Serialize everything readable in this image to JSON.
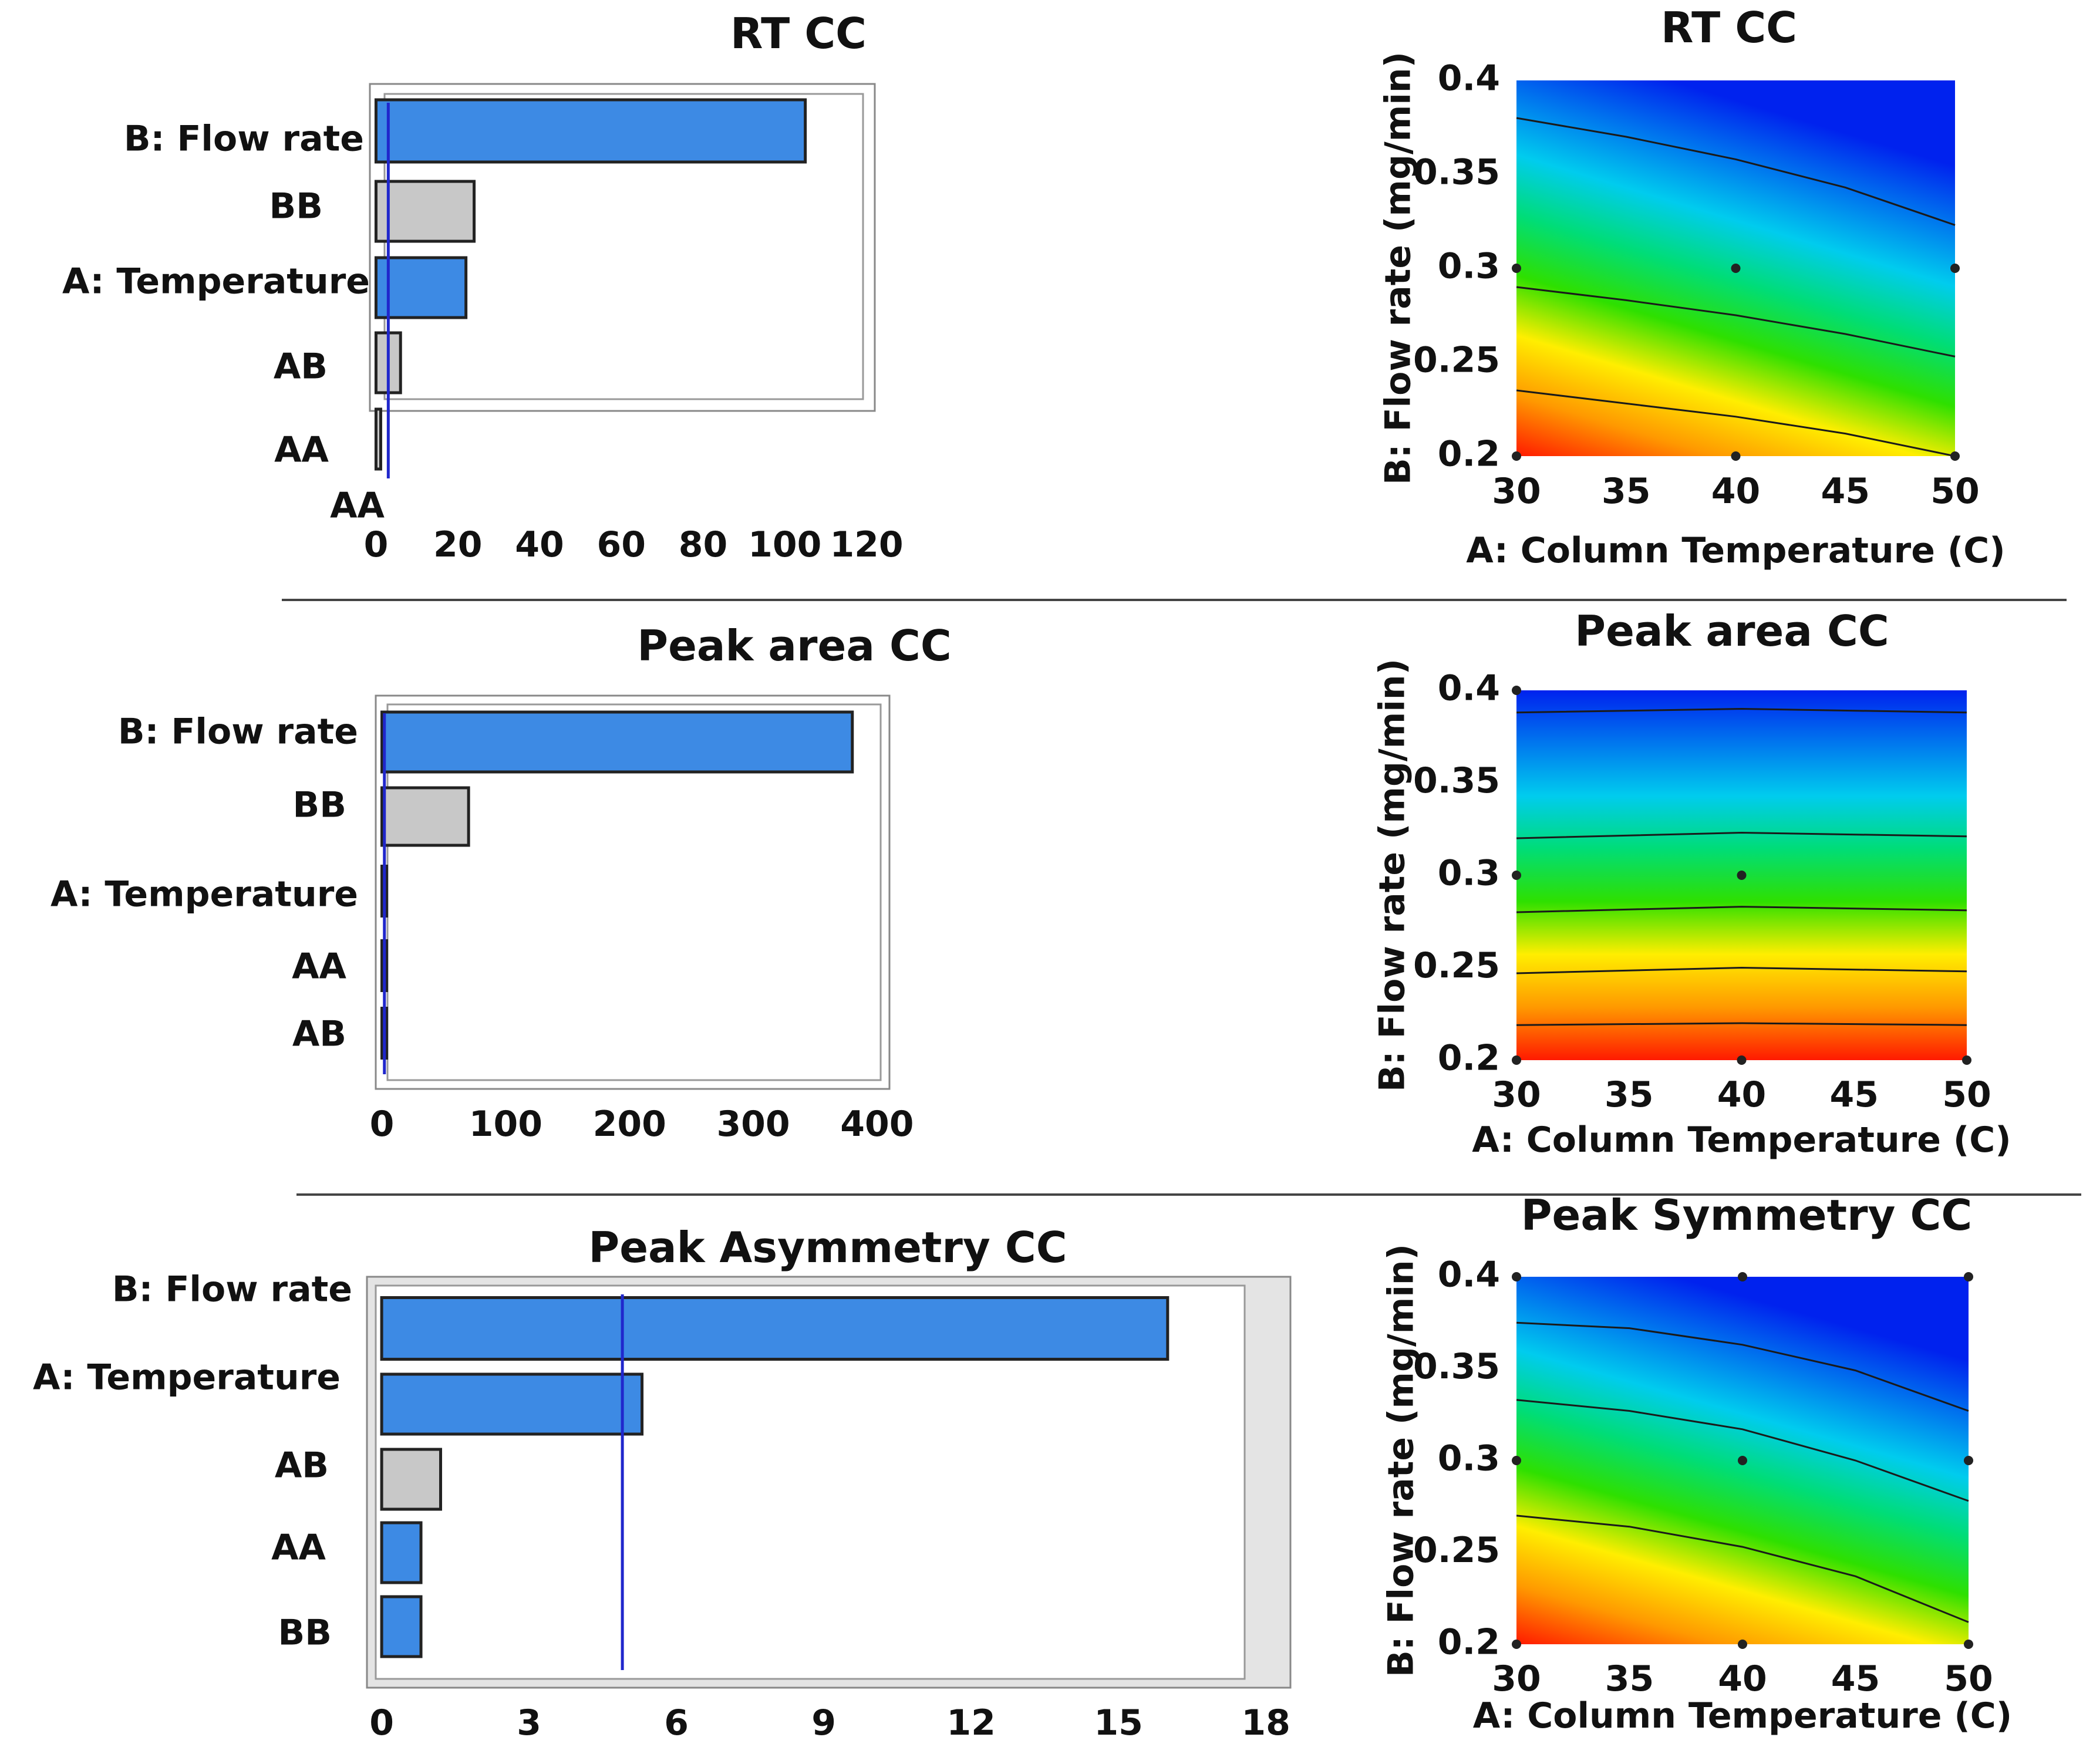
{
  "colors": {
    "significant_bar": "#3d8ae4",
    "nonsignificant_bar": "#c8c8c8",
    "reference_line": "#2027cc",
    "plot_border": "#555555",
    "frame_fill": "#e4e4e4",
    "divider": "#444444",
    "contour_line": "#1a1a1a",
    "design_point": "#222222",
    "gradient": [
      "#ff1a00",
      "#ff9900",
      "#ffee00",
      "#2ee000",
      "#00dd77",
      "#00ccee",
      "#0077ee",
      "#0022ee"
    ]
  },
  "chart_data": [
    {
      "id": "rt-pareto",
      "type": "bar",
      "orientation": "horizontal",
      "title": "RT CC",
      "categories": [
        "B: Flow rate",
        "BB",
        "A: Temperature",
        "AB",
        "AA"
      ],
      "values": [
        105,
        24,
        22,
        6,
        1
      ],
      "significant": [
        true,
        false,
        true,
        false,
        false
      ],
      "extra_labels": [
        "AA"
      ],
      "reference_line": 3,
      "xlim": [
        -1.5,
        122
      ],
      "xticks": [
        0,
        20,
        40,
        60,
        80,
        100,
        120
      ],
      "xlabel": "",
      "ylabel": ""
    },
    {
      "id": "area-pareto",
      "type": "bar",
      "orientation": "horizontal",
      "title": "Peak area CC",
      "categories": [
        "B: Flow rate",
        "BB",
        "A: Temperature",
        "AA",
        "AB"
      ],
      "values": [
        380,
        70,
        1.5,
        1.5,
        1.5
      ],
      "significant": [
        true,
        false,
        true,
        true,
        true
      ],
      "reference_line": 2,
      "xlim": [
        -5,
        410
      ],
      "xticks": [
        0,
        100,
        200,
        300,
        400
      ],
      "xlabel": "",
      "ylabel": ""
    },
    {
      "id": "asym-pareto",
      "type": "bar",
      "orientation": "horizontal",
      "title": "Peak Asymmetry CC",
      "categories": [
        "B: Flow rate",
        "A: Temperature",
        "AB",
        "AA",
        "BB"
      ],
      "values": [
        16,
        5.3,
        1.2,
        0.8,
        0.8
      ],
      "significant": [
        true,
        true,
        false,
        true,
        true
      ],
      "reference_line": 4.9,
      "xlim": [
        -0.3,
        18.5
      ],
      "xticks": [
        0,
        3,
        6,
        9,
        12,
        15,
        18
      ],
      "xlabel": "",
      "ylabel": ""
    },
    {
      "id": "rt-contour",
      "type": "heatmap",
      "title": "RT CC",
      "xlabel": "A: Column Temperature (C)",
      "ylabel": "B: Flow rate (mg/min)",
      "xlim": [
        30,
        50
      ],
      "ylim": [
        0.2,
        0.4
      ],
      "xticks": [
        30,
        35,
        40,
        45,
        50
      ],
      "yticks": [
        0.2,
        0.25,
        0.3,
        0.35,
        0.4
      ],
      "contours": [
        {
          "x": [
            30,
            35,
            40,
            45,
            50
          ],
          "y": [
            0.235,
            0.228,
            0.221,
            0.212,
            0.2
          ]
        },
        {
          "x": [
            30,
            35,
            40,
            45,
            50
          ],
          "y": [
            0.29,
            0.283,
            0.275,
            0.265,
            0.253
          ]
        },
        {
          "x": [
            30,
            35,
            40,
            45,
            50
          ],
          "y": [
            0.38,
            0.37,
            0.358,
            0.343,
            0.323
          ]
        }
      ],
      "design_points": [
        {
          "x": 30,
          "y": 0.3
        },
        {
          "x": 40,
          "y": 0.3
        },
        {
          "x": 50,
          "y": 0.3
        },
        {
          "x": 30,
          "y": 0.2
        },
        {
          "x": 40,
          "y": 0.2
        },
        {
          "x": 50,
          "y": 0.2
        }
      ]
    },
    {
      "id": "area-contour",
      "type": "heatmap",
      "title": "Peak area CC",
      "xlabel": "A: Column Temperature (C)",
      "ylabel": "B: Flow rate (mg/min)",
      "xlim": [
        30,
        50
      ],
      "ylim": [
        0.2,
        0.4
      ],
      "xticks": [
        30,
        35,
        40,
        45,
        50
      ],
      "yticks": [
        0.2,
        0.25,
        0.3,
        0.35,
        0.4
      ],
      "contours": [
        {
          "x": [
            30,
            40,
            50
          ],
          "y": [
            0.219,
            0.22,
            0.219
          ]
        },
        {
          "x": [
            30,
            40,
            50
          ],
          "y": [
            0.247,
            0.25,
            0.248
          ]
        },
        {
          "x": [
            30,
            40,
            50
          ],
          "y": [
            0.28,
            0.283,
            0.281
          ]
        },
        {
          "x": [
            30,
            40,
            50
          ],
          "y": [
            0.32,
            0.323,
            0.321
          ]
        },
        {
          "x": [
            30,
            40,
            50
          ],
          "y": [
            0.388,
            0.39,
            0.388
          ]
        }
      ],
      "design_points": [
        {
          "x": 30,
          "y": 0.3
        },
        {
          "x": 40,
          "y": 0.3
        },
        {
          "x": 30,
          "y": 0.2
        },
        {
          "x": 40,
          "y": 0.2
        },
        {
          "x": 50,
          "y": 0.2
        },
        {
          "x": 30,
          "y": 0.4
        }
      ]
    },
    {
      "id": "sym-contour",
      "type": "heatmap",
      "title": "Peak Symmetry CC",
      "xlabel": "A: Column Temperature (C)",
      "ylabel": "B: Flow rate (mg/min)",
      "xlim": [
        30,
        50
      ],
      "ylim": [
        0.2,
        0.4
      ],
      "xticks": [
        30,
        35,
        40,
        45,
        50
      ],
      "yticks": [
        0.2,
        0.25,
        0.3,
        0.35,
        0.4
      ],
      "contours": [
        {
          "x": [
            30,
            35,
            40,
            45,
            50
          ],
          "y": [
            0.375,
            0.372,
            0.363,
            0.349,
            0.327
          ]
        },
        {
          "x": [
            30,
            35,
            40,
            45,
            50
          ],
          "y": [
            0.333,
            0.327,
            0.317,
            0.3,
            0.278
          ]
        },
        {
          "x": [
            30,
            35,
            40,
            45,
            50
          ],
          "y": [
            0.27,
            0.264,
            0.253,
            0.237,
            0.212
          ]
        }
      ],
      "design_points": [
        {
          "x": 30,
          "y": 0.4
        },
        {
          "x": 40,
          "y": 0.4
        },
        {
          "x": 50,
          "y": 0.4
        },
        {
          "x": 30,
          "y": 0.3
        },
        {
          "x": 40,
          "y": 0.3
        },
        {
          "x": 50,
          "y": 0.3
        },
        {
          "x": 30,
          "y": 0.2
        },
        {
          "x": 40,
          "y": 0.2
        },
        {
          "x": 50,
          "y": 0.2
        }
      ]
    }
  ]
}
